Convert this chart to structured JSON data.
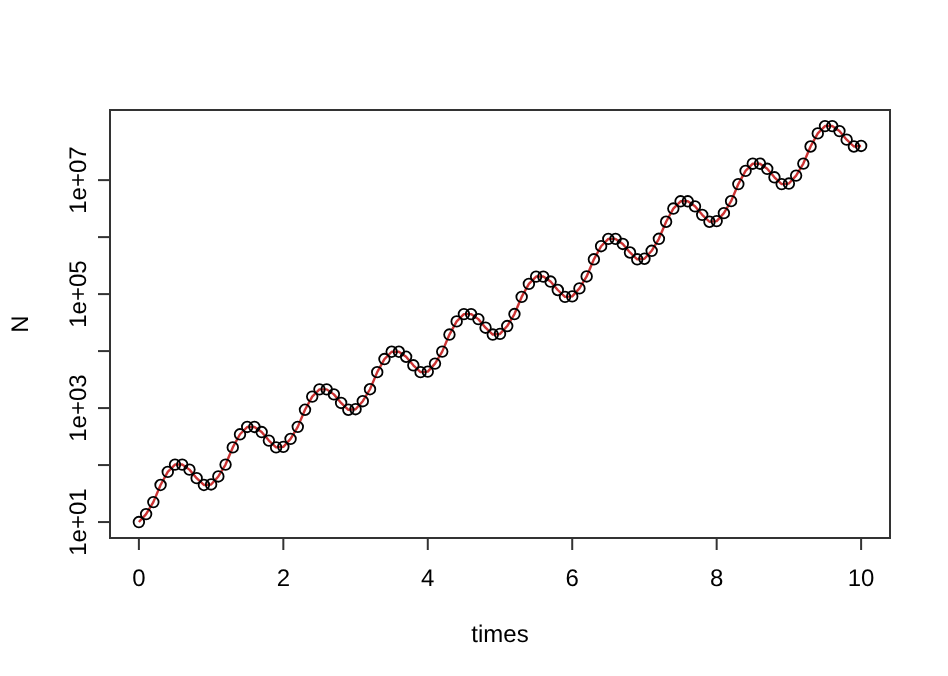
{
  "chart_data": {
    "type": "line",
    "xlabel": "times",
    "ylabel": "N",
    "log": "y",
    "grid": false,
    "x": [
      0,
      0.1,
      0.2,
      0.3,
      0.4,
      0.5,
      0.6,
      0.7,
      0.8,
      0.9,
      1,
      1.1,
      1.2,
      1.3,
      1.4,
      1.5,
      1.6,
      1.7,
      1.8,
      1.9,
      2,
      2.1,
      2.2,
      2.3,
      2.4,
      2.5,
      2.6,
      2.7,
      2.8,
      2.9,
      3,
      3.1,
      3.2,
      3.3,
      3.4,
      3.5,
      3.6,
      3.7,
      3.8,
      3.9,
      4,
      4.1,
      4.2,
      4.3,
      4.4,
      4.5,
      4.6,
      4.7,
      4.8,
      4.9,
      5,
      5.1,
      5.2,
      5.3,
      5.4,
      5.5,
      5.6,
      5.7,
      5.8,
      5.9,
      6,
      6.1,
      6.2,
      6.3,
      6.4,
      6.5,
      6.6,
      6.7,
      6.8,
      6.9,
      7,
      7.1,
      7.2,
      7.3,
      7.4,
      7.5,
      7.6,
      7.7,
      7.8,
      7.9,
      8,
      8.1,
      8.2,
      8.3,
      8.4,
      8.5,
      8.6,
      8.7,
      8.8,
      8.9,
      9,
      9.1,
      9.2,
      9.3,
      9.4,
      9.5,
      9.6,
      9.7,
      9.8,
      9.9,
      10
    ],
    "xlim": [
      -0.4,
      10.4
    ],
    "xticks": [
      0,
      2,
      4,
      6,
      8,
      10
    ],
    "ylim": [
      5.25,
      170000000
    ],
    "yticks": [
      {
        "value": 10,
        "label": "1e+01"
      },
      {
        "value": 100,
        "label": null
      },
      {
        "value": 1000,
        "label": "1e+03"
      },
      {
        "value": 10000,
        "label": null
      },
      {
        "value": 100000,
        "label": "1e+05"
      },
      {
        "value": 1000000,
        "label": null
      },
      {
        "value": 10000000,
        "label": "1e+07"
      }
    ],
    "series": [
      {
        "color": "#cc3333",
        "marker": "none",
        "values": [
          10,
          13.8,
          22.4,
          44.7,
          75.9,
          102,
          102,
          83.2,
          58.9,
          44.7,
          45.7,
          63.1,
          102,
          204,
          347,
          466,
          466,
          380,
          269,
          204,
          209,
          288,
          468,
          934,
          1590,
          2130,
          2130,
          1740,
          1230,
          934,
          955,
          1320,
          2140,
          4270,
          7250,
          9740,
          9740,
          7950,
          5630,
          4270,
          4370,
          6030,
          9790,
          19500,
          33200,
          44600,
          44600,
          36400,
          25700,
          19500,
          20000,
          27500,
          44700,
          89200,
          151000,
          203000,
          203000,
          166000,
          118000,
          89200,
          91200,
          126000,
          204000,
          408000,
          692000,
          930000,
          930000,
          759000,
          537000,
          408000,
          417000,
          575000,
          934000,
          1860000,
          3170000,
          4250000,
          4250000,
          3470000,
          2460000,
          1860000,
          1910000,
          2630000,
          4270000,
          8520000,
          14500000,
          19400000,
          19400000,
          15800000,
          11200000,
          8520000,
          8710000,
          12000000,
          19500000,
          38900000,
          66100000,
          88800000,
          88800000,
          72500000,
          51300000,
          38900000,
          39800000
        ]
      },
      {
        "type": "scatter",
        "color": "#000000",
        "marker": "circle",
        "values": [
          10,
          13.8,
          22.4,
          44.7,
          75.9,
          102,
          102,
          83.2,
          58.9,
          44.7,
          45.7,
          63.1,
          102,
          204,
          347,
          466,
          466,
          380,
          269,
          204,
          209,
          288,
          468,
          934,
          1590,
          2130,
          2130,
          1740,
          1230,
          934,
          955,
          1320,
          2140,
          4270,
          7250,
          9740,
          9740,
          7950,
          5630,
          4270,
          4370,
          6030,
          9790,
          19500,
          33200,
          44600,
          44600,
          36400,
          25700,
          19500,
          20000,
          27500,
          44700,
          89200,
          151000,
          203000,
          203000,
          166000,
          118000,
          89200,
          91200,
          126000,
          204000,
          408000,
          692000,
          930000,
          930000,
          759000,
          537000,
          408000,
          417000,
          575000,
          934000,
          1860000,
          3170000,
          4250000,
          4250000,
          3470000,
          2460000,
          1860000,
          1910000,
          2630000,
          4270000,
          8520000,
          14500000,
          19400000,
          19400000,
          15800000,
          11200000,
          8520000,
          8710000,
          12000000,
          19500000,
          38900000,
          66100000,
          88800000,
          88800000,
          72500000,
          51300000,
          38900000,
          39800000
        ]
      }
    ]
  }
}
